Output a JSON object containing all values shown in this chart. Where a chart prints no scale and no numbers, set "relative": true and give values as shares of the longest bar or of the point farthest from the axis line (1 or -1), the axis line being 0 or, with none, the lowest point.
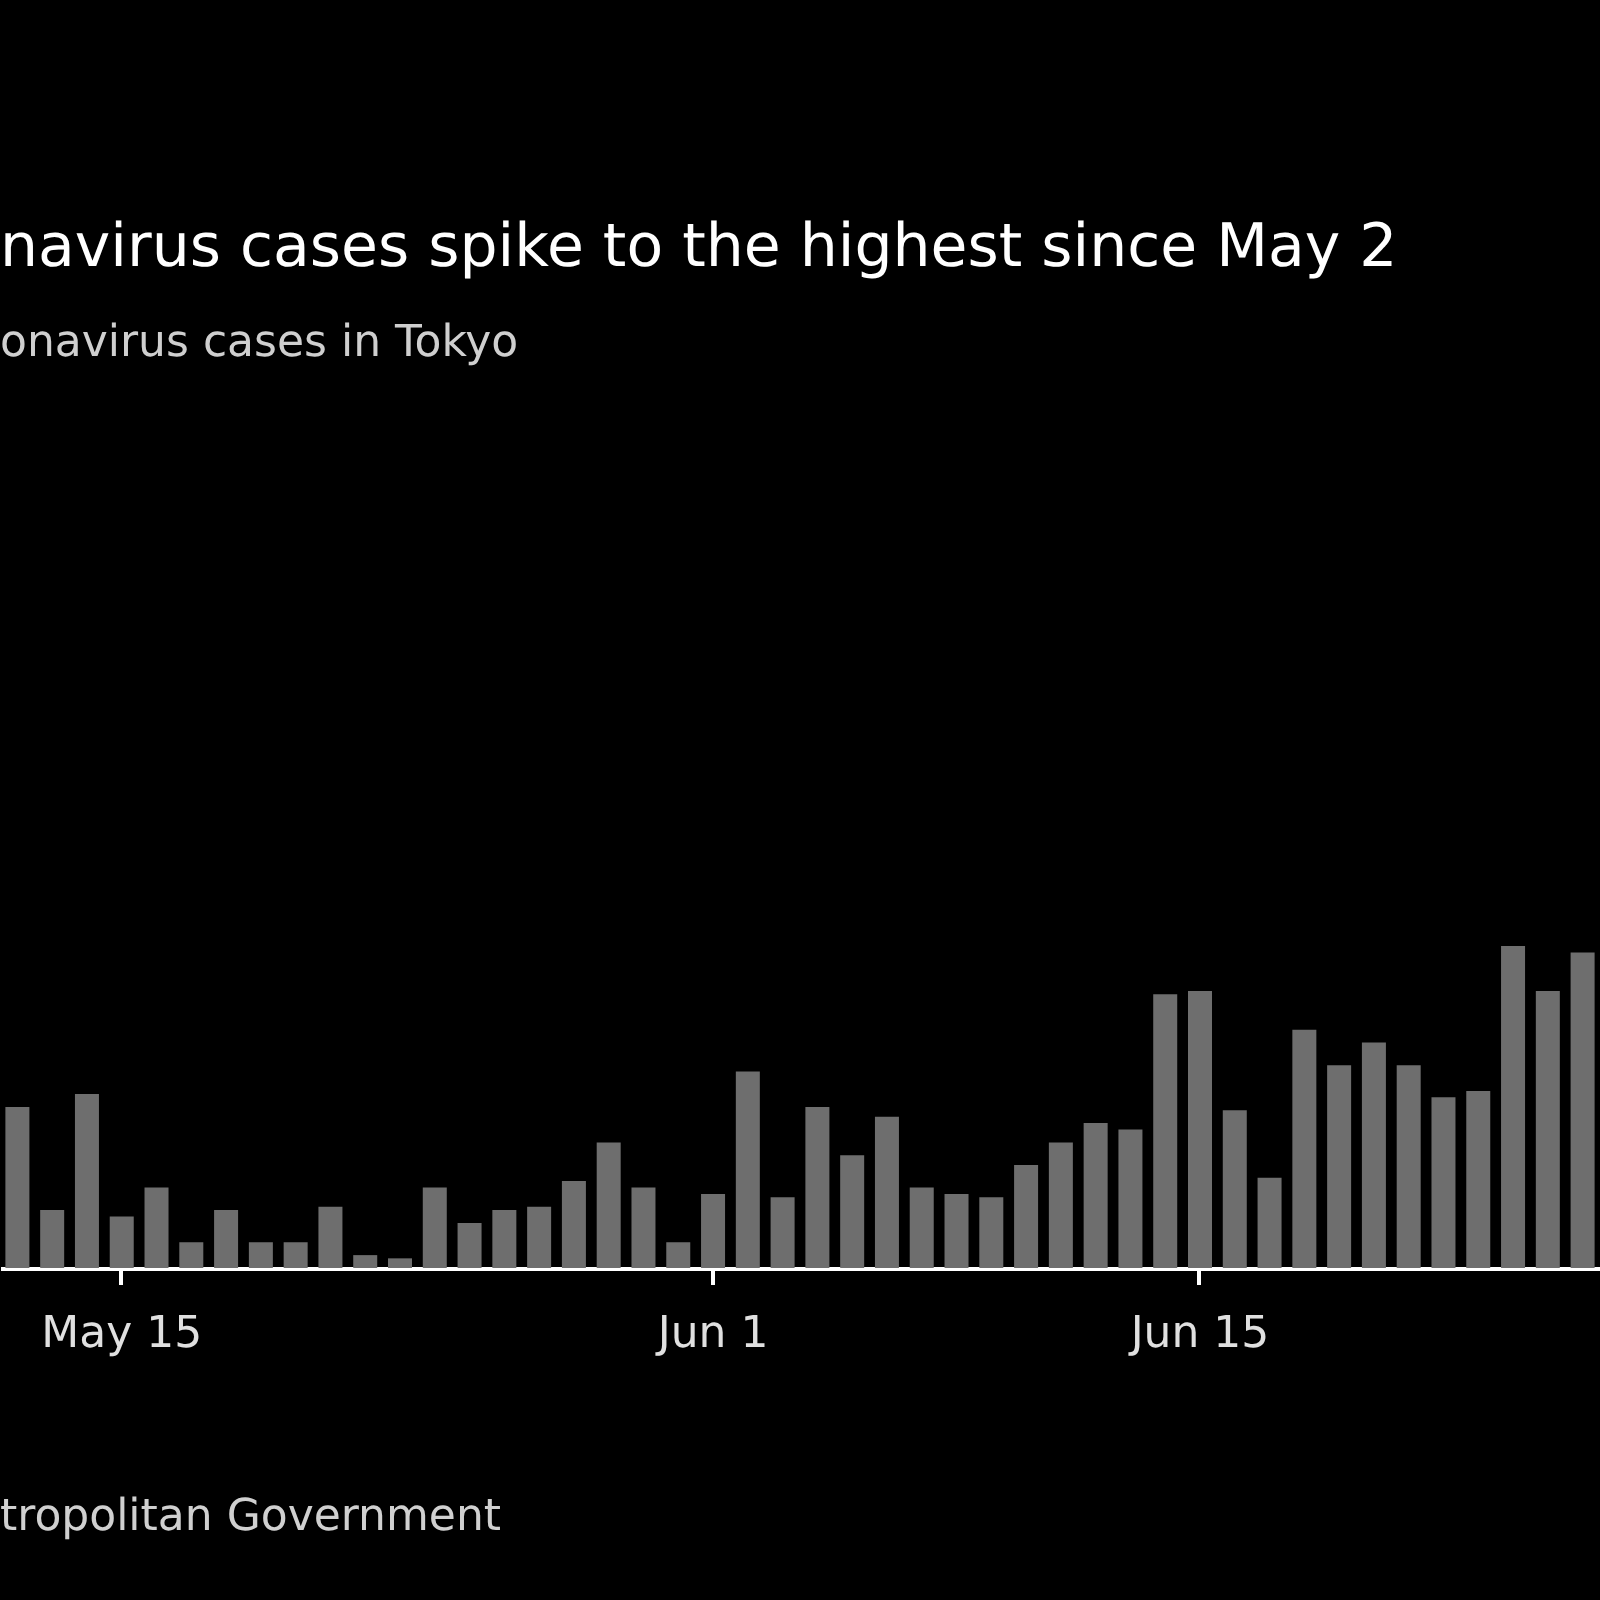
{
  "chart_data": {
    "type": "bar",
    "title": "navirus cases spike to the highest since May 2",
    "subtitle": "onavirus cases in Tokyo",
    "categories": [
      null,
      null,
      null,
      "May 15",
      null,
      null,
      null,
      null,
      null,
      null,
      null,
      null,
      null,
      null,
      null,
      null,
      null,
      null,
      null,
      null,
      "Jun 1",
      null,
      null,
      null,
      null,
      null,
      null,
      null,
      null,
      null,
      null,
      null,
      null,
      null,
      "Jun 15",
      null,
      null,
      null,
      null,
      null,
      null,
      null,
      null,
      null,
      null,
      null
    ],
    "values": [
      0.5,
      0.18,
      0.54,
      0.16,
      0.25,
      0.08,
      0.18,
      0.08,
      0.08,
      0.19,
      0.04,
      0.03,
      0.25,
      0.14,
      0.18,
      0.19,
      0.27,
      0.39,
      0.25,
      0.08,
      0.23,
      0.61,
      0.22,
      0.5,
      0.35,
      0.47,
      0.25,
      0.23,
      0.22,
      0.32,
      0.39,
      0.45,
      0.43,
      0.85,
      0.86,
      0.49,
      0.28,
      0.74,
      0.63,
      0.7,
      0.63,
      0.53,
      0.55,
      1,
      0.86,
      0.98
    ],
    "color": "#6e6e6e",
    "relative": true,
    "tick_labels": "x",
    "annotations": [
      "tropolitan Government"
    ]
  }
}
